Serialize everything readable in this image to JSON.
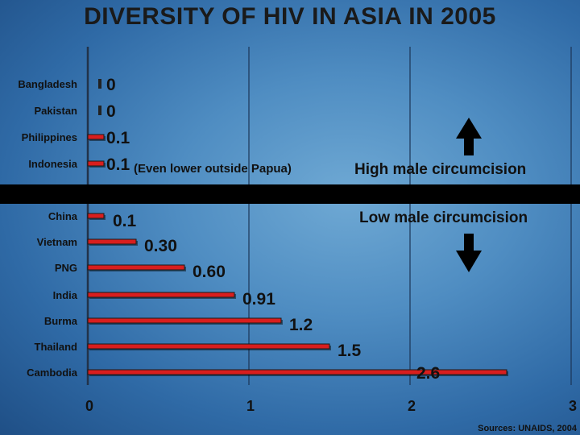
{
  "title": "DIVERSITY OF HIV IN ASIA IN 2005",
  "source": "Sources: UNAIDS, 2004",
  "annotations": {
    "indonesia_note": "(Even lower outside Papua)",
    "high": "High male circumcision",
    "low": "Low male circumcision"
  },
  "colors": {
    "bar": "#d81e1e",
    "bar_edge": "#1a1a1a",
    "band": "#000000",
    "text": "#111111"
  },
  "chart_data": {
    "type": "bar",
    "orientation": "horizontal",
    "title": "DIVERSITY OF HIV IN ASIA IN 2005",
    "categories": [
      "Bangladesh",
      "Pakistan",
      "Philippines",
      "Indonesia",
      "China",
      "Vietnam",
      "PNG",
      "India",
      "Burma",
      "Thailand",
      "Cambodia"
    ],
    "values": [
      0,
      0,
      0.1,
      0.1,
      0.1,
      0.3,
      0.6,
      0.91,
      1.2,
      1.5,
      2.6
    ],
    "value_labels": [
      "0",
      "0",
      "0.1",
      "0.1",
      "0.1",
      "0.30",
      "0.60",
      "0.91",
      "1.2",
      "1.5",
      "2.6"
    ],
    "xlim": [
      0,
      3
    ],
    "xticks": [
      "0",
      "1",
      "2",
      "3"
    ],
    "grid": "vertical",
    "groups": [
      {
        "label": "High male circumcision",
        "categories": [
          "Bangladesh",
          "Pakistan",
          "Philippines",
          "Indonesia"
        ]
      },
      {
        "label": "Low male circumcision",
        "categories": [
          "China",
          "Vietnam",
          "PNG",
          "India",
          "Burma",
          "Thailand",
          "Cambodia"
        ]
      }
    ]
  }
}
